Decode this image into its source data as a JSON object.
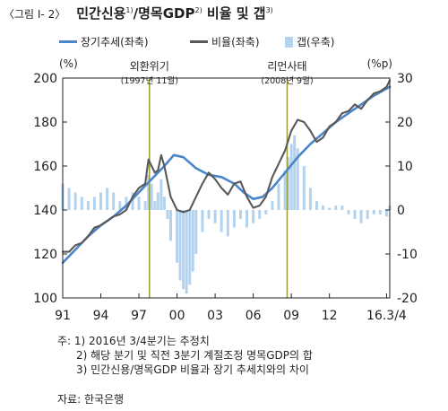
{
  "title": {
    "prefix": "〈그림 Ⅰ- 2〉",
    "main": "민간신용",
    "sup1": "1)",
    "middle": "/명목GDP",
    "sup2": "2)",
    "rest": " 비율 및 갭",
    "sup3": "3)"
  },
  "legend": {
    "trend": "장기추세(좌축)",
    "ratio": "비율(좌축)",
    "gap": "갭(우축)"
  },
  "colors": {
    "trend": "#4a86c8",
    "ratio": "#595959",
    "gap": "#b3d2ee",
    "event_line": "#9a9a2e",
    "axis": "#231f20"
  },
  "notes": {
    "line1": "주: 1) 2016년 3/4분기는 추정치",
    "line2": "2) 해당 분기 및 직전 3분기 계절조정 명목GDP의 합",
    "line3": "3) 민간신용/명목GDP 비율과 장기 추세치와의 차이"
  },
  "source": "자료: 한국은행",
  "chart_data": {
    "type": "line",
    "left_axis": {
      "unit": "(%)",
      "range": [
        100,
        200
      ],
      "ticks": [
        100,
        120,
        140,
        160,
        180,
        200
      ]
    },
    "right_axis": {
      "unit": "(%p)",
      "range": [
        -20,
        30
      ],
      "ticks": [
        -20,
        -10,
        0,
        10,
        20,
        30
      ]
    },
    "x_range": [
      1991.0,
      2016.75
    ],
    "x_ticks": [
      {
        "x": 1991.0,
        "label": "91"
      },
      {
        "x": 1994.0,
        "label": "94"
      },
      {
        "x": 1997.0,
        "label": "97"
      },
      {
        "x": 2000.0,
        "label": "00"
      },
      {
        "x": 2003.0,
        "label": "03"
      },
      {
        "x": 2006.0,
        "label": "06"
      },
      {
        "x": 2009.0,
        "label": "09"
      },
      {
        "x": 2012.0,
        "label": "12"
      },
      {
        "x": 2016.5,
        "label": "16.3/4"
      }
    ],
    "annotations": [
      {
        "x": 1997.83,
        "label": "외환위기",
        "sublabel": "(1997년 11월)"
      },
      {
        "x": 2008.67,
        "label": "리먼사태",
        "sublabel": "(2008년 9월)"
      }
    ],
    "series": [
      {
        "name": "장기추세(좌축)",
        "axis": "left",
        "kind": "line",
        "points": [
          [
            1991.0,
            116
          ],
          [
            1992.0,
            122
          ],
          [
            1993.0,
            128
          ],
          [
            1994.0,
            133
          ],
          [
            1995.0,
            137
          ],
          [
            1996.0,
            142
          ],
          [
            1997.0,
            148
          ],
          [
            1998.0,
            154
          ],
          [
            1999.0,
            160
          ],
          [
            1999.75,
            165
          ],
          [
            2000.5,
            164
          ],
          [
            2001.5,
            159
          ],
          [
            2002.5,
            156
          ],
          [
            2003.5,
            155
          ],
          [
            2004.5,
            152
          ],
          [
            2005.25,
            148
          ],
          [
            2006.0,
            145
          ],
          [
            2006.75,
            146
          ],
          [
            2007.5,
            150
          ],
          [
            2008.5,
            157
          ],
          [
            2009.5,
            164
          ],
          [
            2010.5,
            170
          ],
          [
            2011.5,
            175
          ],
          [
            2012.5,
            180
          ],
          [
            2013.5,
            184
          ],
          [
            2014.5,
            188
          ],
          [
            2015.5,
            192
          ],
          [
            2016.75,
            196
          ]
        ]
      },
      {
        "name": "비율(좌축)",
        "axis": "left",
        "kind": "line",
        "points": [
          [
            1991.0,
            121
          ],
          [
            1991.5,
            121
          ],
          [
            1992.0,
            124
          ],
          [
            1992.5,
            125
          ],
          [
            1993.0,
            128
          ],
          [
            1993.5,
            132
          ],
          [
            1994.0,
            133
          ],
          [
            1994.5,
            135
          ],
          [
            1995.0,
            137
          ],
          [
            1995.5,
            138
          ],
          [
            1996.0,
            140
          ],
          [
            1996.5,
            146
          ],
          [
            1997.0,
            150
          ],
          [
            1997.5,
            152
          ],
          [
            1997.75,
            163
          ],
          [
            1998.0,
            160
          ],
          [
            1998.25,
            157
          ],
          [
            1998.5,
            158
          ],
          [
            1998.75,
            165
          ],
          [
            1999.0,
            160
          ],
          [
            1999.5,
            146
          ],
          [
            2000.0,
            140
          ],
          [
            2000.5,
            139
          ],
          [
            2001.0,
            140
          ],
          [
            2001.5,
            146
          ],
          [
            2002.0,
            152
          ],
          [
            2002.5,
            157
          ],
          [
            2003.0,
            154
          ],
          [
            2003.5,
            150
          ],
          [
            2004.0,
            147
          ],
          [
            2004.5,
            152
          ],
          [
            2005.0,
            153
          ],
          [
            2005.5,
            146
          ],
          [
            2006.0,
            141
          ],
          [
            2006.5,
            142
          ],
          [
            2007.0,
            146
          ],
          [
            2007.5,
            155
          ],
          [
            2008.0,
            161
          ],
          [
            2008.5,
            167
          ],
          [
            2009.0,
            176
          ],
          [
            2009.5,
            181
          ],
          [
            2010.0,
            180
          ],
          [
            2010.5,
            176
          ],
          [
            2011.0,
            171
          ],
          [
            2011.5,
            173
          ],
          [
            2012.0,
            178
          ],
          [
            2012.5,
            180
          ],
          [
            2013.0,
            184
          ],
          [
            2013.5,
            185
          ],
          [
            2014.0,
            188
          ],
          [
            2014.5,
            186
          ],
          [
            2015.0,
            190
          ],
          [
            2015.5,
            193
          ],
          [
            2016.0,
            194
          ],
          [
            2016.5,
            196
          ],
          [
            2016.75,
            199
          ]
        ]
      },
      {
        "name": "갭(우축)",
        "axis": "right",
        "kind": "bar",
        "points": [
          [
            1991.0,
            6
          ],
          [
            1991.5,
            5
          ],
          [
            1992.0,
            4
          ],
          [
            1992.5,
            3
          ],
          [
            1993.0,
            2
          ],
          [
            1993.5,
            3
          ],
          [
            1994.0,
            4
          ],
          [
            1994.5,
            5
          ],
          [
            1995.0,
            4
          ],
          [
            1995.5,
            2
          ],
          [
            1996.0,
            3
          ],
          [
            1996.5,
            4
          ],
          [
            1997.0,
            3
          ],
          [
            1997.5,
            2
          ],
          [
            1997.75,
            8
          ],
          [
            1998.0,
            6
          ],
          [
            1998.25,
            2
          ],
          [
            1998.5,
            4
          ],
          [
            1998.75,
            7
          ],
          [
            1999.0,
            3
          ],
          [
            1999.25,
            -2
          ],
          [
            1999.5,
            -7
          ],
          [
            2000.0,
            -12
          ],
          [
            2000.25,
            -16
          ],
          [
            2000.5,
            -18
          ],
          [
            2000.75,
            -19
          ],
          [
            2001.0,
            -17
          ],
          [
            2001.25,
            -14
          ],
          [
            2001.5,
            -10
          ],
          [
            2002.0,
            -5
          ],
          [
            2002.5,
            -2
          ],
          [
            2003.0,
            -3
          ],
          [
            2003.5,
            -5
          ],
          [
            2004.0,
            -6
          ],
          [
            2004.5,
            -4
          ],
          [
            2005.0,
            -2
          ],
          [
            2005.5,
            -4
          ],
          [
            2006.0,
            -3
          ],
          [
            2006.5,
            -2
          ],
          [
            2007.0,
            -1
          ],
          [
            2007.5,
            2
          ],
          [
            2008.0,
            6
          ],
          [
            2008.5,
            9
          ],
          [
            2008.75,
            12
          ],
          [
            2009.0,
            15
          ],
          [
            2009.25,
            17
          ],
          [
            2009.5,
            14
          ],
          [
            2010.0,
            10
          ],
          [
            2010.5,
            5
          ],
          [
            2011.0,
            2
          ],
          [
            2011.5,
            1
          ],
          [
            2012.0,
            0.5
          ],
          [
            2012.5,
            1
          ],
          [
            2013.0,
            1
          ],
          [
            2013.5,
            -1
          ],
          [
            2014.0,
            -2
          ],
          [
            2014.5,
            -3
          ],
          [
            2015.0,
            -2
          ],
          [
            2015.5,
            -1
          ],
          [
            2016.0,
            -1
          ],
          [
            2016.5,
            -1.5
          ],
          [
            2016.75,
            1
          ]
        ]
      }
    ],
    "grid": false,
    "legend_position": "top"
  }
}
